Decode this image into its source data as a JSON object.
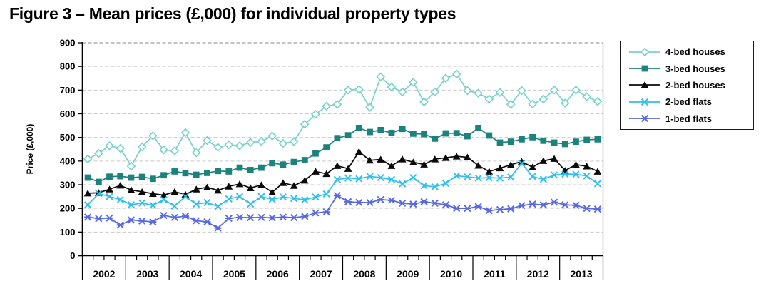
{
  "chart_data": {
    "type": "line",
    "title": "Figure 3 – Mean prices (£,000) for individual property types",
    "ylabel": "Price (£,000)",
    "ylim": [
      0,
      900
    ],
    "ytick_step": 100,
    "y_ticks": [
      0,
      100,
      200,
      300,
      400,
      500,
      600,
      700,
      800,
      900
    ],
    "grid": "horizontal-dashed",
    "legend_position": "right",
    "x_years": [
      "2002",
      "2003",
      "2004",
      "2005",
      "2006",
      "2007",
      "2008",
      "2009",
      "2010",
      "2011",
      "2012",
      "2013"
    ],
    "points_per_year": 4,
    "axis_color": "#000000",
    "gridline_color": "#c9c9c9",
    "top_gridline_color": "#8a8a8a",
    "series": [
      {
        "name": "4-bed houses",
        "color": "#79d1cc",
        "marker": "diamond-open",
        "values": [
          409,
          432,
          465,
          454,
          378,
          460,
          507,
          447,
          443,
          520,
          435,
          487,
          458,
          469,
          465,
          479,
          483,
          506,
          475,
          482,
          556,
          598,
          632,
          640,
          700,
          703,
          627,
          756,
          713,
          692,
          733,
          650,
          692,
          750,
          768,
          698,
          687,
          662,
          690,
          640,
          698,
          641,
          662,
          700,
          645,
          700,
          672,
          652
        ]
      },
      {
        "name": "3-bed houses",
        "color": "#1b837b",
        "marker": "square",
        "values": [
          330,
          312,
          334,
          336,
          330,
          333,
          325,
          340,
          356,
          349,
          342,
          350,
          358,
          356,
          372,
          362,
          372,
          391,
          385,
          396,
          404,
          432,
          458,
          497,
          509,
          540,
          523,
          531,
          519,
          536,
          516,
          514,
          495,
          517,
          518,
          505,
          540,
          508,
          478,
          482,
          492,
          501,
          486,
          478,
          472,
          482,
          490,
          492
        ]
      },
      {
        "name": "2-bed houses",
        "color": "#0a0a0a",
        "marker": "triangle",
        "values": [
          264,
          266,
          281,
          297,
          278,
          270,
          262,
          256,
          270,
          259,
          281,
          289,
          276,
          293,
          303,
          286,
          299,
          268,
          308,
          296,
          318,
          356,
          346,
          380,
          368,
          440,
          403,
          407,
          380,
          408,
          395,
          386,
          408,
          414,
          420,
          416,
          381,
          356,
          370,
          384,
          398,
          374,
          401,
          410,
          360,
          385,
          378,
          356
        ]
      },
      {
        "name": "2-bed flats",
        "color": "#2fbfef",
        "marker": "x",
        "values": [
          215,
          263,
          250,
          237,
          215,
          223,
          213,
          237,
          210,
          250,
          218,
          225,
          208,
          240,
          250,
          218,
          250,
          238,
          248,
          242,
          236,
          248,
          261,
          322,
          328,
          325,
          335,
          330,
          322,
          304,
          330,
          296,
          291,
          306,
          338,
          333,
          328,
          330,
          328,
          332,
          390,
          335,
          323,
          341,
          345,
          344,
          337,
          305
        ]
      },
      {
        "name": "1-bed flats",
        "color": "#5668e2",
        "marker": "star",
        "values": [
          163,
          157,
          159,
          130,
          151,
          147,
          143,
          170,
          162,
          167,
          148,
          143,
          117,
          158,
          162,
          161,
          162,
          160,
          163,
          161,
          166,
          181,
          185,
          254,
          228,
          225,
          225,
          237,
          234,
          222,
          218,
          228,
          222,
          215,
          200,
          200,
          208,
          191,
          195,
          198,
          212,
          218,
          215,
          226,
          215,
          213,
          200,
          197
        ]
      }
    ]
  }
}
